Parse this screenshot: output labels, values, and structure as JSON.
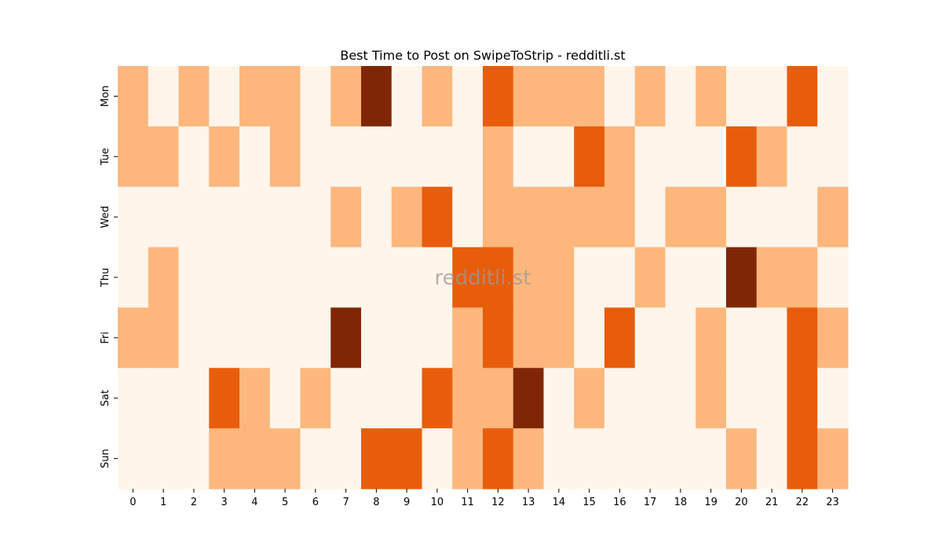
{
  "chart_data": {
    "type": "heatmap",
    "title": "Best Time to Post on SwipeToStrip - redditli.st",
    "xlabel": "",
    "ylabel": "",
    "x_categories": [
      "0",
      "1",
      "2",
      "3",
      "4",
      "5",
      "6",
      "7",
      "8",
      "9",
      "10",
      "11",
      "12",
      "13",
      "14",
      "15",
      "16",
      "17",
      "18",
      "19",
      "20",
      "21",
      "22",
      "23"
    ],
    "y_categories": [
      "Mon",
      "Tue",
      "Wed",
      "Thu",
      "Fri",
      "Sat",
      "Sun"
    ],
    "values": [
      [
        1,
        0,
        1,
        0,
        1,
        1,
        0,
        1,
        3,
        0,
        1,
        0,
        2,
        1,
        1,
        1,
        0,
        1,
        0,
        1,
        0,
        0,
        2,
        0
      ],
      [
        1,
        1,
        0,
        1,
        0,
        1,
        0,
        0,
        0,
        0,
        0,
        0,
        1,
        0,
        0,
        2,
        1,
        0,
        0,
        0,
        2,
        1,
        0,
        0
      ],
      [
        0,
        0,
        0,
        0,
        0,
        0,
        0,
        1,
        0,
        1,
        2,
        0,
        1,
        1,
        1,
        1,
        1,
        0,
        1,
        1,
        0,
        0,
        0,
        1
      ],
      [
        0,
        1,
        0,
        0,
        0,
        0,
        0,
        0,
        0,
        0,
        0,
        2,
        2,
        1,
        1,
        0,
        0,
        1,
        0,
        0,
        3,
        1,
        1,
        0
      ],
      [
        1,
        1,
        0,
        0,
        0,
        0,
        0,
        3,
        0,
        0,
        0,
        1,
        2,
        1,
        1,
        0,
        2,
        0,
        0,
        1,
        0,
        0,
        2,
        1
      ],
      [
        0,
        0,
        0,
        2,
        1,
        0,
        1,
        0,
        0,
        0,
        2,
        1,
        1,
        3,
        0,
        1,
        0,
        0,
        0,
        1,
        0,
        0,
        2,
        0
      ],
      [
        0,
        0,
        0,
        1,
        1,
        1,
        0,
        0,
        2,
        2,
        0,
        1,
        2,
        1,
        0,
        0,
        0,
        0,
        0,
        0,
        1,
        0,
        2,
        1
      ]
    ],
    "color_levels": [
      "#fff5eb",
      "#fdb77c",
      "#e85d0c",
      "#7f2704"
    ],
    "colormap": "Oranges",
    "colorbar": false,
    "watermark": "redditli.st"
  }
}
